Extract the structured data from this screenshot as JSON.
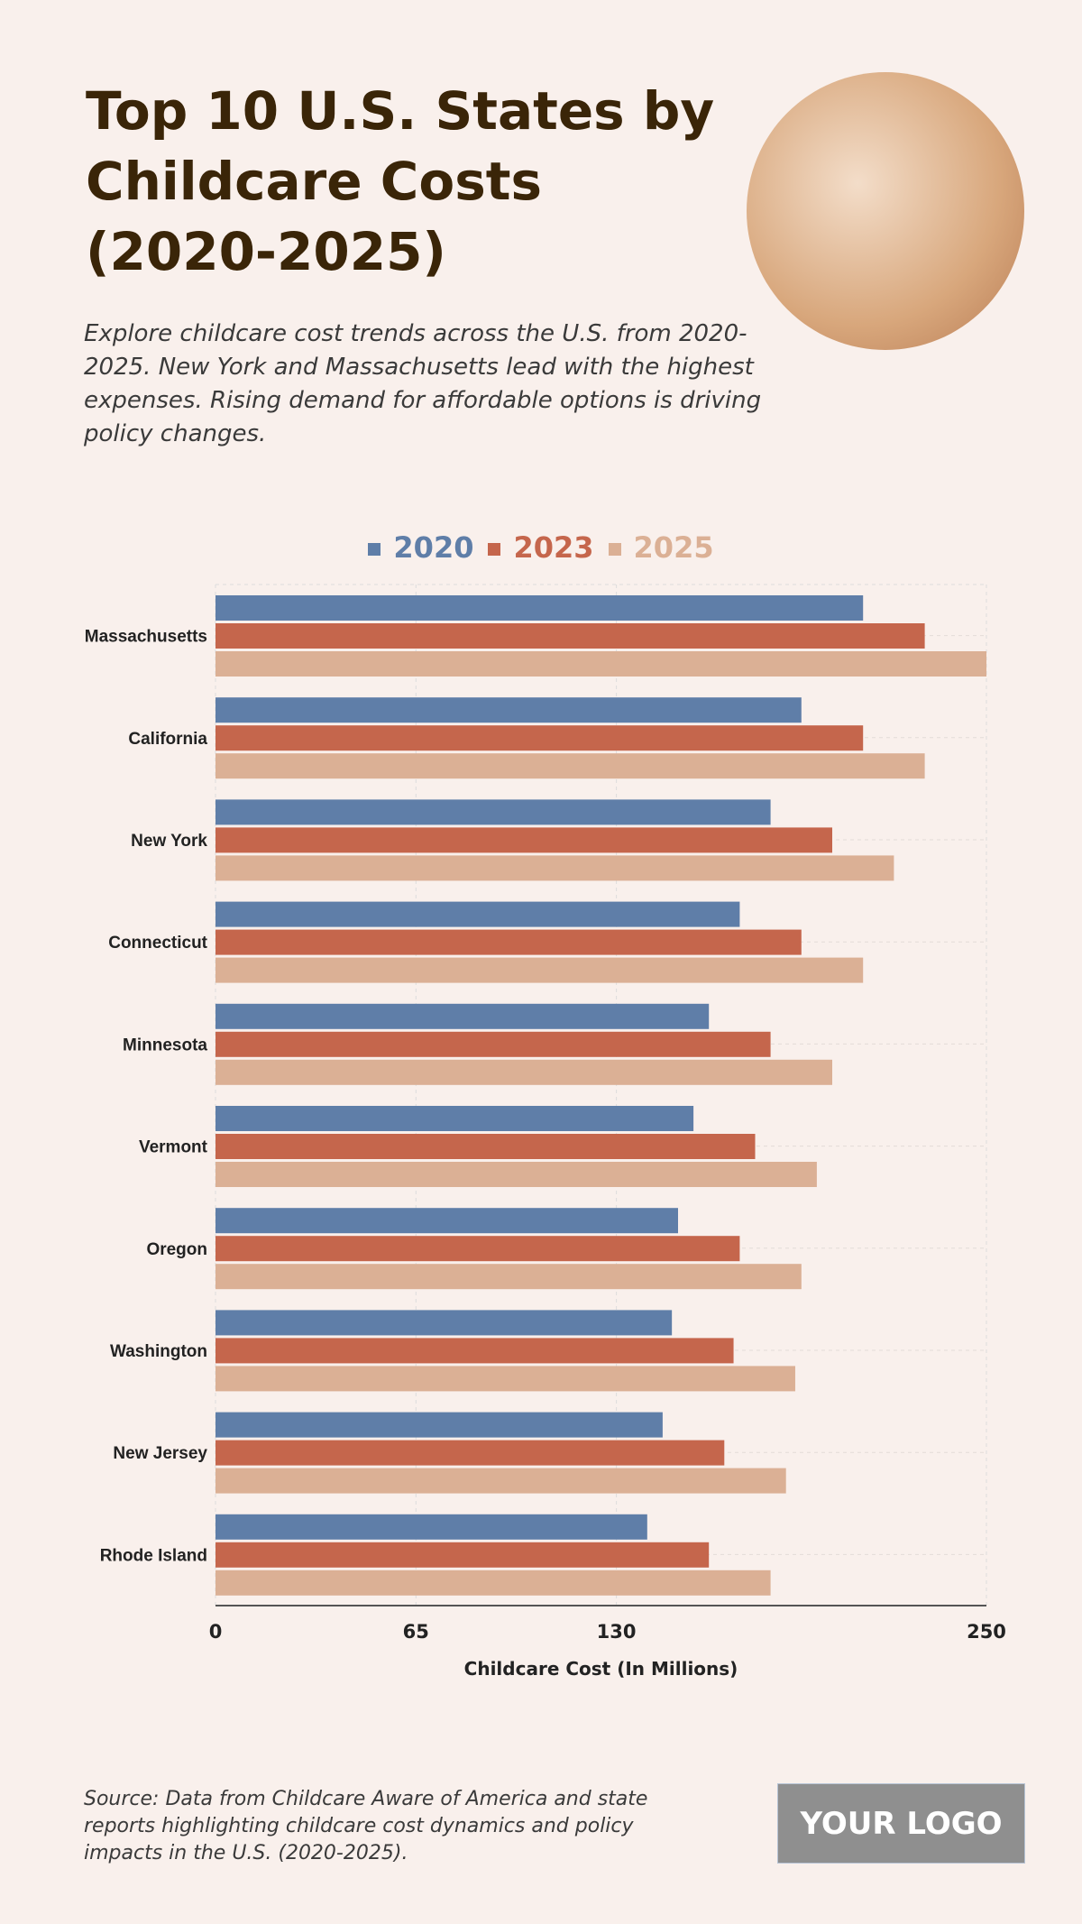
{
  "title": "Top 10 U.S. States by Childcare Costs (2020-2025)",
  "subtitle": "Explore childcare cost trends across the U.S. from 2020-2025. New York and Massachusetts lead with the highest expenses. Rising demand for affordable options is driving policy changes.",
  "source": "Source: Data from Childcare Aware of America and state reports highlighting childcare cost dynamics and policy impacts in the U.S. (2020-2025).",
  "logo": "YOUR LOGO",
  "chart_data": {
    "type": "bar",
    "orientation": "horizontal",
    "categories": [
      "Massachusetts",
      "California",
      "New York",
      "Connecticut",
      "Minnesota",
      "Vermont",
      "Oregon",
      "Washington",
      "New Jersey",
      "Rhode Island"
    ],
    "series": [
      {
        "name": "2020",
        "color": "#5f7ea8",
        "values": [
          210,
          190,
          180,
          170,
          160,
          155,
          150,
          148,
          145,
          140
        ]
      },
      {
        "name": "2023",
        "color": "#c5664c",
        "values": [
          230,
          210,
          200,
          190,
          180,
          175,
          170,
          168,
          165,
          160
        ]
      },
      {
        "name": "2025",
        "color": "#dbb095",
        "values": [
          250,
          230,
          220,
          210,
          200,
          195,
          190,
          188,
          185,
          180
        ]
      }
    ],
    "xlabel": "Childcare Cost (In Millions)",
    "ylabel": "",
    "xlim": [
      0,
      250
    ],
    "xticks": [
      0,
      65,
      130,
      250
    ],
    "grid": true,
    "legend": "top"
  }
}
